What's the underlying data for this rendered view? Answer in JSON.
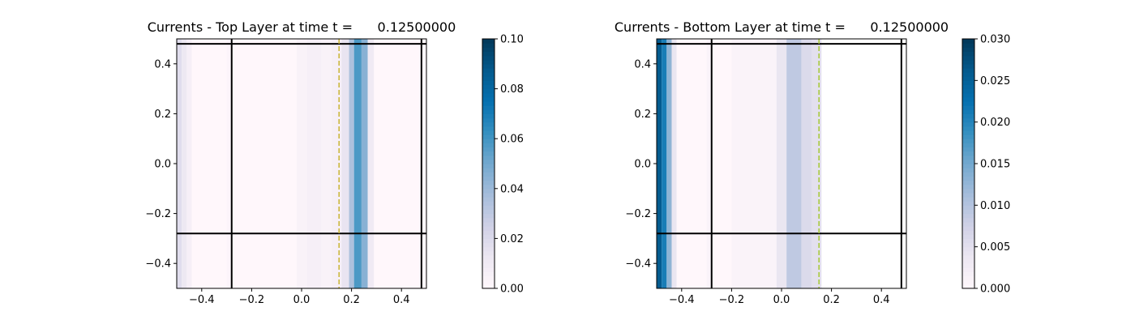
{
  "chart_data": [
    {
      "type": "heatmap",
      "title": "Currents - Top Layer at time t =      0.12500000",
      "xlabel": "",
      "ylabel": "",
      "xlim": [
        -0.5,
        0.5
      ],
      "ylim": [
        -0.5,
        0.5
      ],
      "x_ticks": [
        -0.4,
        -0.2,
        0.0,
        0.2,
        0.4
      ],
      "x_tick_labels": [
        "−0.4",
        "−0.2",
        "0.0",
        "0.2",
        "0.4"
      ],
      "y_ticks": [
        -0.4,
        -0.2,
        0.0,
        0.2,
        0.4
      ],
      "y_tick_labels": [
        "−0.4",
        "−0.2",
        "0.0",
        "0.2",
        "0.4"
      ],
      "colormap": "PuBu",
      "colorbar": {
        "vmin": 0.0,
        "vmax": 0.1,
        "ticks": [
          0.0,
          0.02,
          0.04,
          0.06,
          0.08,
          0.1
        ],
        "tick_labels": [
          "0.00",
          "0.02",
          "0.04",
          "0.06",
          "0.08",
          "0.10"
        ]
      },
      "bands": [
        {
          "x0": -0.5,
          "x1": -0.48,
          "value": 0.018
        },
        {
          "x0": -0.48,
          "x1": -0.46,
          "value": 0.012
        },
        {
          "x0": -0.46,
          "x1": -0.44,
          "value": 0.006
        },
        {
          "x0": -0.44,
          "x1": -0.3,
          "value": 0.0
        },
        {
          "x0": -0.3,
          "x1": -0.28,
          "value": 0.002
        },
        {
          "x0": -0.28,
          "x1": -0.02,
          "value": 0.0
        },
        {
          "x0": -0.02,
          "x1": 0.02,
          "value": 0.004
        },
        {
          "x0": 0.02,
          "x1": 0.08,
          "value": 0.006
        },
        {
          "x0": 0.08,
          "x1": 0.12,
          "value": 0.004
        },
        {
          "x0": 0.12,
          "x1": 0.16,
          "value": 0.006
        },
        {
          "x0": 0.16,
          "x1": 0.19,
          "value": 0.014
        },
        {
          "x0": 0.19,
          "x1": 0.21,
          "value": 0.035
        },
        {
          "x0": 0.21,
          "x1": 0.24,
          "value": 0.058
        },
        {
          "x0": 0.24,
          "x1": 0.265,
          "value": 0.045
        },
        {
          "x0": 0.265,
          "x1": 0.29,
          "value": 0.01
        },
        {
          "x0": 0.29,
          "x1": 0.5,
          "value": 0.0
        }
      ],
      "solid_lines": [
        {
          "orientation": "vertical",
          "value": -0.28
        },
        {
          "orientation": "vertical",
          "value": 0.48
        },
        {
          "orientation": "horizontal",
          "value": -0.28
        },
        {
          "orientation": "horizontal",
          "value": 0.48
        }
      ],
      "dashed_line": {
        "orientation": "vertical",
        "value": 0.15,
        "color": "#c8b432"
      }
    },
    {
      "type": "heatmap",
      "title": "Currents - Bottom Layer at time t =      0.12500000",
      "xlabel": "",
      "ylabel": "",
      "xlim": [
        -0.5,
        0.5
      ],
      "ylim": [
        -0.5,
        0.5
      ],
      "x_ticks": [
        -0.4,
        -0.2,
        0.0,
        0.2,
        0.4
      ],
      "x_tick_labels": [
        "−0.4",
        "−0.2",
        "0.0",
        "0.2",
        "0.4"
      ],
      "y_ticks": [
        -0.4,
        -0.2,
        0.0,
        0.2,
        0.4
      ],
      "y_tick_labels": [
        "−0.4",
        "−0.2",
        "0.0",
        "0.2",
        "0.4"
      ],
      "colormap": "PuBu",
      "colorbar": {
        "vmin": 0.0,
        "vmax": 0.03,
        "ticks": [
          0.0,
          0.005,
          0.01,
          0.015,
          0.02,
          0.025,
          0.03
        ],
        "tick_labels": [
          "0.000",
          "0.005",
          "0.010",
          "0.015",
          "0.020",
          "0.025",
          "0.030"
        ]
      },
      "bands": [
        {
          "x0": -0.5,
          "x1": -0.48,
          "value": 0.026
        },
        {
          "x0": -0.48,
          "x1": -0.46,
          "value": 0.021
        },
        {
          "x0": -0.46,
          "x1": -0.44,
          "value": 0.013
        },
        {
          "x0": -0.44,
          "x1": -0.42,
          "value": 0.004
        },
        {
          "x0": -0.42,
          "x1": -0.3,
          "value": 0.0
        },
        {
          "x0": -0.3,
          "x1": -0.28,
          "value": 0.001
        },
        {
          "x0": -0.28,
          "x1": -0.2,
          "value": 0.0
        },
        {
          "x0": -0.2,
          "x1": -0.02,
          "value": 0.001
        },
        {
          "x0": -0.02,
          "x1": 0.02,
          "value": 0.004
        },
        {
          "x0": 0.02,
          "x1": 0.08,
          "value": 0.009
        },
        {
          "x0": 0.08,
          "x1": 0.12,
          "value": 0.006
        },
        {
          "x0": 0.12,
          "x1": 0.16,
          "value": 0.005
        },
        {
          "x0": 0.16,
          "x1": 0.5,
          "value": 0.0
        }
      ],
      "bands_end_x": 0.16,
      "solid_lines": [
        {
          "orientation": "vertical",
          "value": -0.28
        },
        {
          "orientation": "vertical",
          "value": 0.48
        },
        {
          "orientation": "horizontal",
          "value": -0.28
        },
        {
          "orientation": "horizontal",
          "value": 0.48
        }
      ],
      "dashed_line": {
        "orientation": "vertical",
        "value": 0.15,
        "color": "#a5c832"
      }
    }
  ]
}
